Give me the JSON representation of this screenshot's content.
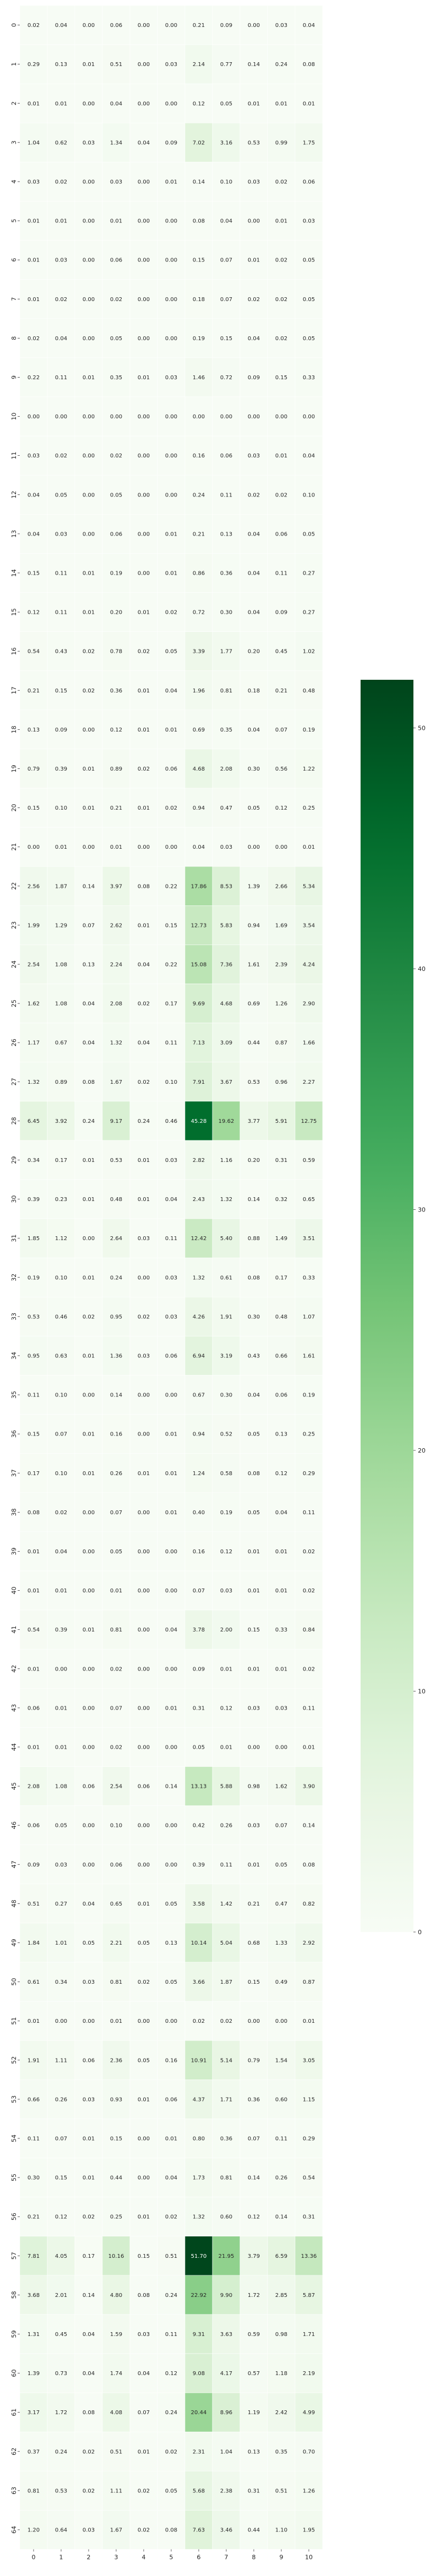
{
  "chart_data": {
    "type": "heatmap",
    "title": "",
    "xlabel": "",
    "ylabel": "",
    "colormap": "Greens",
    "vmin": 0,
    "vmax": 52,
    "colorbar_ticks": [
      0,
      10,
      20,
      30,
      40,
      50
    ],
    "x": [
      "0",
      "1",
      "2",
      "3",
      "4",
      "5",
      "6",
      "7",
      "8",
      "9",
      "10"
    ],
    "y": [
      "0",
      "1",
      "2",
      "3",
      "4",
      "5",
      "6",
      "7",
      "8",
      "9",
      "10",
      "11",
      "12",
      "13",
      "14",
      "15",
      "16",
      "17",
      "18",
      "19",
      "20",
      "21",
      "22",
      "23",
      "24",
      "25",
      "26",
      "27",
      "28",
      "29",
      "30",
      "31",
      "32",
      "33",
      "34",
      "35",
      "36",
      "37",
      "38",
      "39",
      "40",
      "41",
      "42",
      "43",
      "44",
      "45",
      "46",
      "47",
      "48",
      "49",
      "50",
      "51",
      "52",
      "53",
      "54",
      "55",
      "56",
      "57",
      "58",
      "59",
      "60",
      "61",
      "62",
      "63",
      "64"
    ],
    "values": [
      [
        0.02,
        0.04,
        0.0,
        0.06,
        0.0,
        0.0,
        0.21,
        0.09,
        0.0,
        0.03,
        0.04
      ],
      [
        0.29,
        0.13,
        0.01,
        0.51,
        0.0,
        0.03,
        2.14,
        0.77,
        0.14,
        0.24,
        0.08
      ],
      [
        0.01,
        0.01,
        0.0,
        0.04,
        0.0,
        0.0,
        0.12,
        0.05,
        0.01,
        0.01,
        0.01
      ],
      [
        1.04,
        0.62,
        0.03,
        1.34,
        0.04,
        0.09,
        7.02,
        3.16,
        0.53,
        0.99,
        1.75
      ],
      [
        0.03,
        0.02,
        0.0,
        0.03,
        0.0,
        0.01,
        0.14,
        0.1,
        0.03,
        0.02,
        0.06
      ],
      [
        0.01,
        0.01,
        0.0,
        0.01,
        0.0,
        0.0,
        0.08,
        0.04,
        0.0,
        0.01,
        0.03
      ],
      [
        0.01,
        0.03,
        0.0,
        0.06,
        0.0,
        0.0,
        0.15,
        0.07,
        0.01,
        0.02,
        0.05
      ],
      [
        0.01,
        0.02,
        0.0,
        0.02,
        0.0,
        0.0,
        0.18,
        0.07,
        0.02,
        0.02,
        0.05
      ],
      [
        0.02,
        0.04,
        0.0,
        0.05,
        0.0,
        0.0,
        0.19,
        0.15,
        0.04,
        0.02,
        0.05
      ],
      [
        0.22,
        0.11,
        0.01,
        0.35,
        0.01,
        0.03,
        1.46,
        0.72,
        0.09,
        0.15,
        0.33
      ],
      [
        0.0,
        0.0,
        0.0,
        0.0,
        0.0,
        0.0,
        0.0,
        0.0,
        0.0,
        0.0,
        0.0
      ],
      [
        0.03,
        0.02,
        0.0,
        0.02,
        0.0,
        0.0,
        0.16,
        0.06,
        0.03,
        0.01,
        0.04
      ],
      [
        0.04,
        0.05,
        0.0,
        0.05,
        0.0,
        0.0,
        0.24,
        0.11,
        0.02,
        0.02,
        0.1
      ],
      [
        0.04,
        0.03,
        0.0,
        0.06,
        0.0,
        0.01,
        0.21,
        0.13,
        0.04,
        0.06,
        0.05
      ],
      [
        0.15,
        0.11,
        0.01,
        0.19,
        0.0,
        0.01,
        0.86,
        0.36,
        0.04,
        0.11,
        0.27
      ],
      [
        0.12,
        0.11,
        0.01,
        0.2,
        0.01,
        0.02,
        0.72,
        0.3,
        0.04,
        0.09,
        0.27
      ],
      [
        0.54,
        0.43,
        0.02,
        0.78,
        0.02,
        0.05,
        3.39,
        1.77,
        0.2,
        0.45,
        1.02
      ],
      [
        0.21,
        0.15,
        0.02,
        0.36,
        0.01,
        0.04,
        1.96,
        0.81,
        0.18,
        0.21,
        0.48
      ],
      [
        0.13,
        0.09,
        0.0,
        0.12,
        0.01,
        0.01,
        0.69,
        0.35,
        0.04,
        0.07,
        0.19
      ],
      [
        0.79,
        0.39,
        0.01,
        0.89,
        0.02,
        0.06,
        4.68,
        2.08,
        0.3,
        0.56,
        1.22
      ],
      [
        0.15,
        0.1,
        0.01,
        0.21,
        0.01,
        0.02,
        0.94,
        0.47,
        0.05,
        0.12,
        0.25
      ],
      [
        0.0,
        0.01,
        0.0,
        0.01,
        0.0,
        0.0,
        0.04,
        0.03,
        0.0,
        0.0,
        0.01
      ],
      [
        2.56,
        1.87,
        0.14,
        3.97,
        0.08,
        0.22,
        17.86,
        8.53,
        1.39,
        2.66,
        5.34
      ],
      [
        1.99,
        1.29,
        0.07,
        2.62,
        0.01,
        0.15,
        12.73,
        5.83,
        0.94,
        1.69,
        3.54
      ],
      [
        2.54,
        1.08,
        0.13,
        2.24,
        0.04,
        0.22,
        15.08,
        7.36,
        1.61,
        2.39,
        4.24
      ],
      [
        1.62,
        1.08,
        0.04,
        2.08,
        0.02,
        0.17,
        9.69,
        4.68,
        0.69,
        1.26,
        2.9
      ],
      [
        1.17,
        0.67,
        0.04,
        1.32,
        0.04,
        0.11,
        7.13,
        3.09,
        0.44,
        0.87,
        1.66
      ],
      [
        1.32,
        0.89,
        0.08,
        1.67,
        0.02,
        0.1,
        7.91,
        3.67,
        0.53,
        0.96,
        2.27
      ],
      [
        6.45,
        3.92,
        0.24,
        9.17,
        0.24,
        0.46,
        45.28,
        19.62,
        3.77,
        5.91,
        12.75
      ],
      [
        0.34,
        0.17,
        0.01,
        0.53,
        0.01,
        0.03,
        2.82,
        1.16,
        0.2,
        0.31,
        0.59
      ],
      [
        0.39,
        0.23,
        0.01,
        0.48,
        0.01,
        0.04,
        2.43,
        1.32,
        0.14,
        0.32,
        0.65
      ],
      [
        1.85,
        1.12,
        0.0,
        2.64,
        0.03,
        0.11,
        12.42,
        5.4,
        0.88,
        1.49,
        3.51
      ],
      [
        0.19,
        0.1,
        0.01,
        0.24,
        0.0,
        0.03,
        1.32,
        0.61,
        0.08,
        0.17,
        0.33
      ],
      [
        0.53,
        0.46,
        0.02,
        0.95,
        0.02,
        0.03,
        4.26,
        1.91,
        0.3,
        0.48,
        1.07
      ],
      [
        0.95,
        0.63,
        0.01,
        1.36,
        0.03,
        0.06,
        6.94,
        3.19,
        0.43,
        0.66,
        1.61
      ],
      [
        0.11,
        0.1,
        0.0,
        0.14,
        0.0,
        0.0,
        0.67,
        0.3,
        0.04,
        0.06,
        0.19
      ],
      [
        0.15,
        0.07,
        0.01,
        0.16,
        0.0,
        0.01,
        0.94,
        0.52,
        0.05,
        0.13,
        0.25
      ],
      [
        0.17,
        0.1,
        0.01,
        0.26,
        0.01,
        0.01,
        1.24,
        0.58,
        0.08,
        0.12,
        0.29
      ],
      [
        0.08,
        0.02,
        0.0,
        0.07,
        0.0,
        0.01,
        0.4,
        0.19,
        0.05,
        0.04,
        0.11
      ],
      [
        0.01,
        0.04,
        0.0,
        0.05,
        0.0,
        0.0,
        0.16,
        0.12,
        0.01,
        0.01,
        0.02
      ],
      [
        0.01,
        0.01,
        0.0,
        0.01,
        0.0,
        0.0,
        0.07,
        0.03,
        0.01,
        0.01,
        0.02
      ],
      [
        0.54,
        0.39,
        0.01,
        0.81,
        0.0,
        0.04,
        3.78,
        2.0,
        0.15,
        0.33,
        0.84
      ],
      [
        0.01,
        0.0,
        0.0,
        0.02,
        0.0,
        0.0,
        0.09,
        0.01,
        0.01,
        0.01,
        0.02
      ],
      [
        0.06,
        0.01,
        0.0,
        0.07,
        0.0,
        0.01,
        0.31,
        0.12,
        0.03,
        0.03,
        0.11
      ],
      [
        0.01,
        0.01,
        0.0,
        0.02,
        0.0,
        0.0,
        0.05,
        0.01,
        0.0,
        0.0,
        0.01
      ],
      [
        2.08,
        1.08,
        0.06,
        2.54,
        0.06,
        0.14,
        13.13,
        5.88,
        0.98,
        1.62,
        3.9
      ],
      [
        0.06,
        0.05,
        0.0,
        0.1,
        0.0,
        0.0,
        0.42,
        0.26,
        0.03,
        0.07,
        0.14
      ],
      [
        0.09,
        0.03,
        0.0,
        0.06,
        0.0,
        0.0,
        0.39,
        0.11,
        0.01,
        0.05,
        0.08
      ],
      [
        0.51,
        0.27,
        0.04,
        0.65,
        0.01,
        0.05,
        3.58,
        1.42,
        0.21,
        0.47,
        0.82
      ],
      [
        1.84,
        1.01,
        0.05,
        2.21,
        0.05,
        0.13,
        10.14,
        5.04,
        0.68,
        1.33,
        2.92
      ],
      [
        0.61,
        0.34,
        0.03,
        0.81,
        0.02,
        0.05,
        3.66,
        1.87,
        0.15,
        0.49,
        0.87
      ],
      [
        0.01,
        0.0,
        0.0,
        0.01,
        0.0,
        0.0,
        0.02,
        0.02,
        0.0,
        0.0,
        0.01
      ],
      [
        1.91,
        1.11,
        0.06,
        2.36,
        0.05,
        0.16,
        10.91,
        5.14,
        0.79,
        1.54,
        3.05
      ],
      [
        0.66,
        0.26,
        0.03,
        0.93,
        0.01,
        0.06,
        4.37,
        1.71,
        0.36,
        0.6,
        1.15
      ],
      [
        0.11,
        0.07,
        0.01,
        0.15,
        0.0,
        0.01,
        0.8,
        0.36,
        0.07,
        0.11,
        0.29
      ],
      [
        0.3,
        0.15,
        0.01,
        0.44,
        0.0,
        0.04,
        1.73,
        0.81,
        0.14,
        0.26,
        0.54
      ],
      [
        0.21,
        0.12,
        0.02,
        0.25,
        0.01,
        0.02,
        1.32,
        0.6,
        0.12,
        0.14,
        0.31
      ],
      [
        7.81,
        4.05,
        0.17,
        10.16,
        0.15,
        0.51,
        51.7,
        21.95,
        3.79,
        6.59,
        13.36
      ],
      [
        3.68,
        2.01,
        0.14,
        4.8,
        0.08,
        0.24,
        22.92,
        9.9,
        1.72,
        2.85,
        5.87
      ],
      [
        1.31,
        0.45,
        0.04,
        1.59,
        0.03,
        0.11,
        9.31,
        3.63,
        0.59,
        0.98,
        1.71
      ],
      [
        1.39,
        0.73,
        0.04,
        1.74,
        0.04,
        0.12,
        9.08,
        4.17,
        0.57,
        1.18,
        2.19
      ],
      [
        3.17,
        1.72,
        0.08,
        4.08,
        0.07,
        0.24,
        20.44,
        8.96,
        1.19,
        2.42,
        4.99
      ],
      [
        0.37,
        0.24,
        0.02,
        0.51,
        0.01,
        0.02,
        2.31,
        1.04,
        0.13,
        0.35,
        0.7
      ],
      [
        0.81,
        0.53,
        0.02,
        1.11,
        0.02,
        0.05,
        5.68,
        2.38,
        0.31,
        0.51,
        1.26
      ],
      [
        1.2,
        0.64,
        0.03,
        1.67,
        0.02,
        0.08,
        7.63,
        3.46,
        0.44,
        1.1,
        1.95
      ]
    ]
  }
}
